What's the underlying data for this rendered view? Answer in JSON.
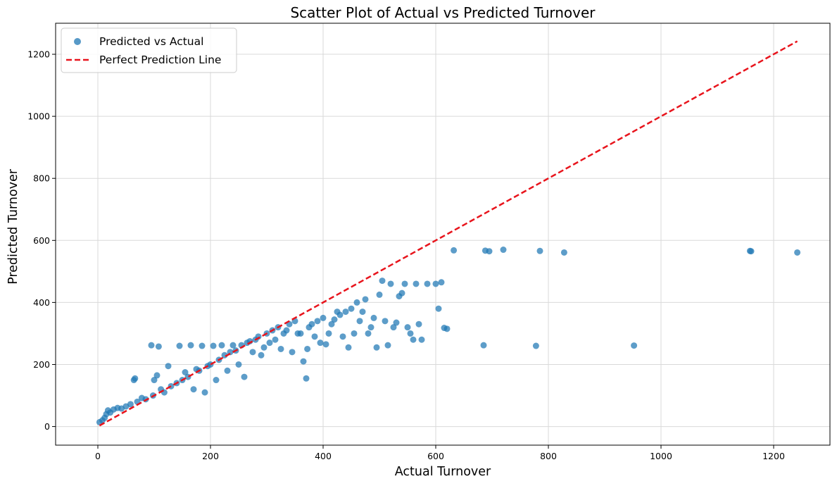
{
  "chart_data": {
    "type": "scatter",
    "title": "Scatter Plot of Actual vs Predicted Turnover",
    "xlabel": "Actual Turnover",
    "ylabel": "Predicted Turnover",
    "xlim": [
      -75,
      1300
    ],
    "ylim": [
      -60,
      1300
    ],
    "xticks": [
      0,
      200,
      400,
      600,
      800,
      1000,
      1200
    ],
    "yticks": [
      0,
      200,
      400,
      600,
      800,
      1000,
      1200
    ],
    "grid": true,
    "legend_position": "top-left",
    "colors": {
      "points": "#1f77b4",
      "line": "#e8141c",
      "grid": "#d9d9d9"
    },
    "series": [
      {
        "name": "Predicted vs Actual",
        "kind": "scatter",
        "points": [
          [
            3,
            14
          ],
          [
            8,
            20
          ],
          [
            12,
            28
          ],
          [
            15,
            40
          ],
          [
            18,
            52
          ],
          [
            22,
            45
          ],
          [
            28,
            55
          ],
          [
            35,
            60
          ],
          [
            42,
            58
          ],
          [
            50,
            65
          ],
          [
            58,
            72
          ],
          [
            64,
            150
          ],
          [
            66,
            155
          ],
          [
            70,
            80
          ],
          [
            78,
            92
          ],
          [
            85,
            88
          ],
          [
            95,
            262
          ],
          [
            98,
            100
          ],
          [
            100,
            150
          ],
          [
            105,
            165
          ],
          [
            108,
            258
          ],
          [
            112,
            120
          ],
          [
            118,
            110
          ],
          [
            125,
            195
          ],
          [
            130,
            130
          ],
          [
            140,
            140
          ],
          [
            145,
            260
          ],
          [
            150,
            150
          ],
          [
            155,
            175
          ],
          [
            160,
            160
          ],
          [
            165,
            262
          ],
          [
            170,
            120
          ],
          [
            175,
            185
          ],
          [
            180,
            180
          ],
          [
            185,
            260
          ],
          [
            190,
            110
          ],
          [
            195,
            195
          ],
          [
            200,
            200
          ],
          [
            205,
            260
          ],
          [
            210,
            150
          ],
          [
            215,
            215
          ],
          [
            220,
            262
          ],
          [
            225,
            230
          ],
          [
            230,
            180
          ],
          [
            235,
            240
          ],
          [
            240,
            262
          ],
          [
            245,
            245
          ],
          [
            250,
            200
          ],
          [
            255,
            262
          ],
          [
            260,
            160
          ],
          [
            265,
            270
          ],
          [
            270,
            275
          ],
          [
            275,
            240
          ],
          [
            280,
            280
          ],
          [
            285,
            290
          ],
          [
            290,
            230
          ],
          [
            295,
            255
          ],
          [
            300,
            300
          ],
          [
            305,
            270
          ],
          [
            310,
            310
          ],
          [
            315,
            280
          ],
          [
            320,
            320
          ],
          [
            325,
            250
          ],
          [
            330,
            300
          ],
          [
            335,
            310
          ],
          [
            340,
            330
          ],
          [
            345,
            240
          ],
          [
            350,
            340
          ],
          [
            355,
            300
          ],
          [
            360,
            300
          ],
          [
            365,
            210
          ],
          [
            370,
            155
          ],
          [
            372,
            250
          ],
          [
            375,
            320
          ],
          [
            380,
            330
          ],
          [
            385,
            290
          ],
          [
            390,
            340
          ],
          [
            395,
            270
          ],
          [
            400,
            350
          ],
          [
            405,
            265
          ],
          [
            410,
            300
          ],
          [
            415,
            330
          ],
          [
            420,
            345
          ],
          [
            425,
            370
          ],
          [
            430,
            360
          ],
          [
            435,
            290
          ],
          [
            440,
            370
          ],
          [
            445,
            255
          ],
          [
            450,
            380
          ],
          [
            455,
            300
          ],
          [
            460,
            400
          ],
          [
            465,
            340
          ],
          [
            470,
            370
          ],
          [
            475,
            410
          ],
          [
            480,
            300
          ],
          [
            485,
            320
          ],
          [
            490,
            350
          ],
          [
            495,
            255
          ],
          [
            500,
            425
          ],
          [
            505,
            470
          ],
          [
            510,
            340
          ],
          [
            515,
            262
          ],
          [
            520,
            460
          ],
          [
            525,
            320
          ],
          [
            530,
            335
          ],
          [
            535,
            420
          ],
          [
            540,
            430
          ],
          [
            545,
            460
          ],
          [
            550,
            320
          ],
          [
            555,
            300
          ],
          [
            560,
            280
          ],
          [
            565,
            460
          ],
          [
            570,
            330
          ],
          [
            575,
            280
          ],
          [
            585,
            460
          ],
          [
            600,
            460
          ],
          [
            605,
            380
          ],
          [
            610,
            465
          ],
          [
            615,
            318
          ],
          [
            620,
            315
          ],
          [
            632,
            568
          ],
          [
            685,
            262
          ],
          [
            688,
            567
          ],
          [
            695,
            565
          ],
          [
            720,
            570
          ],
          [
            778,
            260
          ],
          [
            785,
            566
          ],
          [
            828,
            561
          ],
          [
            952,
            261
          ],
          [
            1158,
            566
          ],
          [
            1160,
            565
          ],
          [
            1242,
            561
          ]
        ]
      },
      {
        "name": "Perfect Prediction Line",
        "kind": "line",
        "x": [
          3,
          1242
        ],
        "y": [
          3,
          1242
        ]
      }
    ]
  }
}
